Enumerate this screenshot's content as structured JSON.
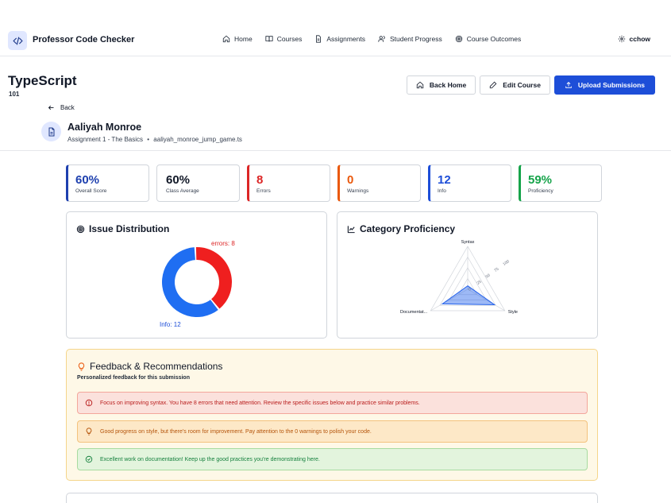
{
  "app": {
    "name": "Professor Code Checker",
    "user": "cchow",
    "nav": [
      "Home",
      "Courses",
      "Assignments",
      "Student Progress",
      "Course Outcomes"
    ]
  },
  "course": {
    "title": "TypeScript",
    "number": "101",
    "actions": {
      "back_home": "Back Home",
      "edit_course": "Edit Course",
      "upload": "Upload Submissions"
    }
  },
  "back_label": "Back",
  "student": {
    "name": "Aaliyah Monroe",
    "assignment": "Assignment 1 - The Basics",
    "separator": "•",
    "file": "aaliyah_monroe_jump_game.ts"
  },
  "stats": [
    {
      "value": "60%",
      "label": "Overall Score",
      "color": "#1e40af"
    },
    {
      "value": "60%",
      "label": "Class Average",
      "color": "#111827"
    },
    {
      "value": "8",
      "label": "Errors",
      "color": "#dc2626"
    },
    {
      "value": "0",
      "label": "Warnings",
      "color": "#ea580c"
    },
    {
      "value": "12",
      "label": "Info",
      "color": "#1d4ed8"
    },
    {
      "value": "59%",
      "label": "Proficiency",
      "color": "#16a34a"
    }
  ],
  "issue_distribution": {
    "title": "Issue Distribution",
    "chart_data": {
      "type": "pie",
      "slices": [
        {
          "name": "Errors",
          "value": 8,
          "color": "#ef1f1f"
        },
        {
          "name": "Info",
          "value": 12,
          "color": "#1f6ef2"
        }
      ],
      "labels": [
        "errors: 8",
        "Info: 12"
      ]
    }
  },
  "category_proficiency": {
    "title": "Category Proficiency",
    "chart_data": {
      "type": "radar",
      "axes": [
        "Syntax",
        "Style",
        "Documentat..."
      ],
      "ticks": [
        "0",
        "25",
        "50",
        "75",
        "100"
      ],
      "max": 100,
      "values": [
        8,
        72,
        68
      ],
      "color": "#2563eb"
    }
  },
  "feedback": {
    "title": "Feedback & Recommendations",
    "subtitle": "Personalized feedback for this submission",
    "items": [
      "Focus on improving syntax. You have 8 errors that need attention. Review the specific issues below and practice similar problems.",
      "Good progress on style, but there's room for improvement. Pay attention to the 0 warnings to polish your code.",
      "Excellent work on documentation! Keep up the good practices you're demonstrating here."
    ]
  }
}
